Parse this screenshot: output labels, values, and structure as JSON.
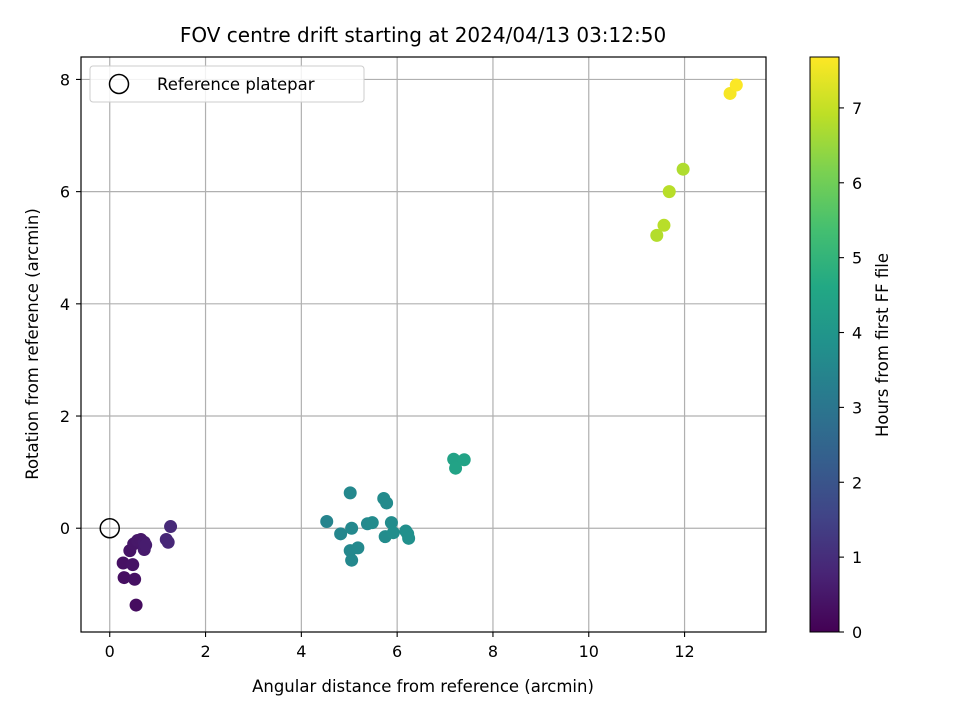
{
  "chart_data": {
    "type": "scatter",
    "title": "FOV centre drift starting at 2024/04/13 03:12:50",
    "xlabel": "Angular distance from reference (arcmin)",
    "ylabel": "Rotation from reference (arcmin)",
    "xlim": [
      -0.6,
      13.7
    ],
    "ylim": [
      -1.85,
      8.4
    ],
    "xticks": [
      0,
      2,
      4,
      6,
      8,
      10,
      12
    ],
    "yticks": [
      0,
      2,
      4,
      6,
      8
    ],
    "grid": true,
    "legend": {
      "position": "top-left",
      "entries": [
        "Reference platepar"
      ]
    },
    "reference_point": {
      "x": 0,
      "y": 0
    },
    "colorbar": {
      "label": "Hours from first FF file",
      "colormap": "viridis",
      "range": [
        0,
        7.68
      ],
      "ticks": [
        0,
        1,
        2,
        3,
        4,
        5,
        6,
        7
      ]
    },
    "points": [
      {
        "x": 0.55,
        "y": -1.37,
        "c": 0.25
      },
      {
        "x": 0.3,
        "y": -0.88,
        "c": 0.3
      },
      {
        "x": 0.52,
        "y": -0.91,
        "c": 0.35
      },
      {
        "x": 0.28,
        "y": -0.62,
        "c": 0.35
      },
      {
        "x": 0.48,
        "y": -0.65,
        "c": 0.4
      },
      {
        "x": 0.42,
        "y": -0.4,
        "c": 0.4
      },
      {
        "x": 0.5,
        "y": -0.28,
        "c": 0.45
      },
      {
        "x": 0.58,
        "y": -0.22,
        "c": 0.5
      },
      {
        "x": 0.65,
        "y": -0.2,
        "c": 0.5
      },
      {
        "x": 0.72,
        "y": -0.38,
        "c": 0.55
      },
      {
        "x": 0.72,
        "y": -0.25,
        "c": 0.55
      },
      {
        "x": 0.75,
        "y": -0.3,
        "c": 0.6
      },
      {
        "x": 1.18,
        "y": -0.2,
        "c": 0.85
      },
      {
        "x": 1.22,
        "y": -0.25,
        "c": 0.85
      },
      {
        "x": 1.27,
        "y": 0.03,
        "c": 0.9
      },
      {
        "x": 4.53,
        "y": 0.12,
        "c": 3.45
      },
      {
        "x": 4.82,
        "y": -0.1,
        "c": 3.5
      },
      {
        "x": 5.02,
        "y": 0.63,
        "c": 3.55
      },
      {
        "x": 5.02,
        "y": -0.4,
        "c": 3.55
      },
      {
        "x": 5.05,
        "y": -0.57,
        "c": 3.55
      },
      {
        "x": 5.05,
        "y": 0.0,
        "c": 3.55
      },
      {
        "x": 5.18,
        "y": -0.35,
        "c": 3.6
      },
      {
        "x": 5.38,
        "y": 0.08,
        "c": 3.6
      },
      {
        "x": 5.48,
        "y": 0.1,
        "c": 3.65
      },
      {
        "x": 5.72,
        "y": 0.53,
        "c": 3.65
      },
      {
        "x": 5.78,
        "y": 0.45,
        "c": 3.65
      },
      {
        "x": 5.75,
        "y": -0.15,
        "c": 3.7
      },
      {
        "x": 5.88,
        "y": 0.1,
        "c": 3.7
      },
      {
        "x": 5.92,
        "y": -0.08,
        "c": 3.75
      },
      {
        "x": 6.18,
        "y": -0.05,
        "c": 3.75
      },
      {
        "x": 6.22,
        "y": -0.1,
        "c": 3.8
      },
      {
        "x": 6.24,
        "y": -0.18,
        "c": 3.8
      },
      {
        "x": 7.18,
        "y": 1.23,
        "c": 4.4
      },
      {
        "x": 7.4,
        "y": 1.22,
        "c": 4.45
      },
      {
        "x": 7.22,
        "y": 1.07,
        "c": 4.45
      },
      {
        "x": 11.42,
        "y": 5.22,
        "c": 6.8
      },
      {
        "x": 11.57,
        "y": 5.4,
        "c": 6.85
      },
      {
        "x": 11.68,
        "y": 6.0,
        "c": 6.85
      },
      {
        "x": 11.97,
        "y": 6.4,
        "c": 6.75
      },
      {
        "x": 12.95,
        "y": 7.75,
        "c": 7.6
      },
      {
        "x": 13.08,
        "y": 7.9,
        "c": 7.65
      }
    ]
  }
}
